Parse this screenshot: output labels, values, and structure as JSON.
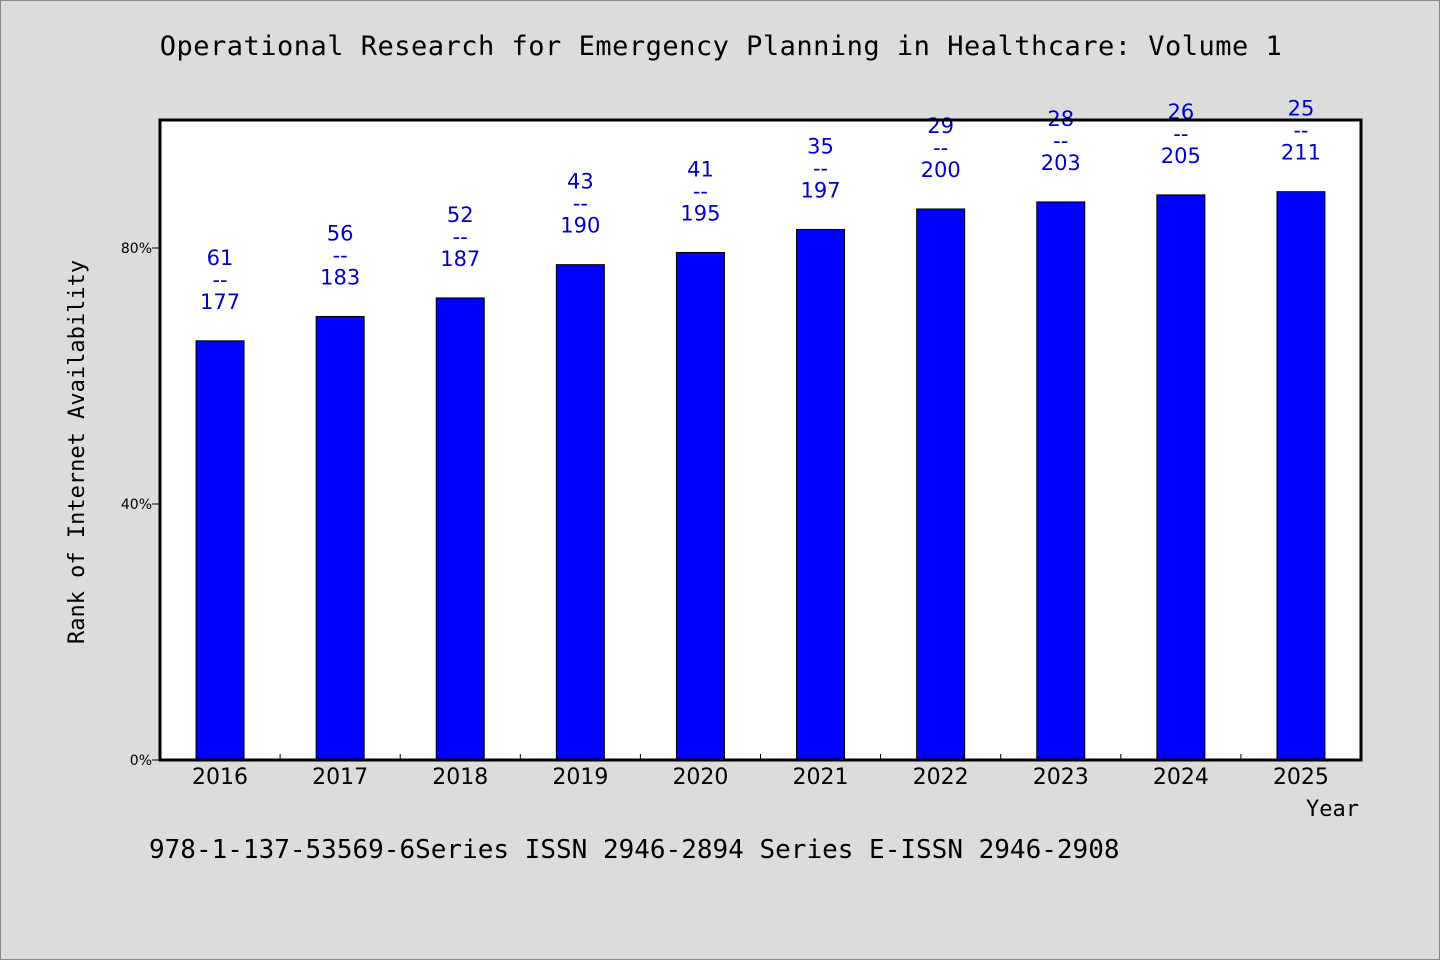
{
  "title": "Operational Research for Emergency Planning in Healthcare: Volume 1",
  "footer": "978-1-137-53569-6Series ISSN 2946-2894 Series E-ISSN 2946-2908",
  "colors": {
    "bar": "#0000ff",
    "label": "#0000cc",
    "background": "#dcdcdc",
    "plot_background": "#ffffff"
  },
  "chart_data": {
    "type": "bar",
    "title": "Operational Research for Emergency Planning in Healthcare: Volume 1",
    "xlabel": "Year",
    "ylabel": "Rank of Internet Availability",
    "categories": [
      "2016",
      "2017",
      "2018",
      "2019",
      "2020",
      "2021",
      "2022",
      "2023",
      "2024",
      "2025"
    ],
    "values": [
      65.5,
      69.3,
      72.2,
      77.4,
      79.3,
      82.9,
      86.1,
      87.2,
      88.3,
      88.8
    ],
    "data_labels": [
      {
        "top": "61",
        "sep": "--",
        "bottom": "177"
      },
      {
        "top": "56",
        "sep": "--",
        "bottom": "183"
      },
      {
        "top": "52",
        "sep": "--",
        "bottom": "187"
      },
      {
        "top": "43",
        "sep": "--",
        "bottom": "190"
      },
      {
        "top": "41",
        "sep": "--",
        "bottom": "195"
      },
      {
        "top": "35",
        "sep": "--",
        "bottom": "197"
      },
      {
        "top": "29",
        "sep": "--",
        "bottom": "200"
      },
      {
        "top": "28",
        "sep": "--",
        "bottom": "203"
      },
      {
        "top": "26",
        "sep": "--",
        "bottom": "205"
      },
      {
        "top": "25",
        "sep": "--",
        "bottom": "211"
      }
    ],
    "ylim": [
      0,
      100
    ],
    "yticks": [
      0,
      40,
      80
    ],
    "ytick_labels": [
      "0%",
      "40%",
      "80%"
    ],
    "grid": false,
    "legend": "none"
  }
}
